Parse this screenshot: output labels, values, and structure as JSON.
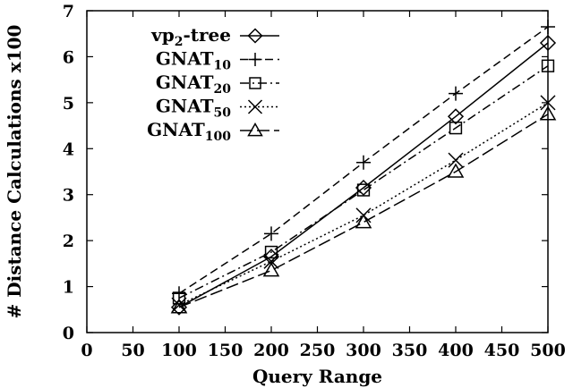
{
  "chart_data": {
    "type": "line",
    "xlabel": "Query Range",
    "ylabel": "# Distance Calculations x100",
    "xlim": [
      0,
      500
    ],
    "ylim": [
      0,
      7
    ],
    "xticks": [
      "0",
      "50",
      "100",
      "150",
      "200",
      "250",
      "300",
      "350",
      "400",
      "450",
      "500"
    ],
    "yticks": [
      "0",
      "1",
      "2",
      "3",
      "4",
      "5",
      "6",
      "7"
    ],
    "grid": false,
    "legend_position": "top-left",
    "x": [
      100,
      200,
      300,
      400,
      500
    ],
    "series": [
      {
        "name": "vp2-tree",
        "name_main": "vp",
        "name_sub": "2",
        "name_tail": "-tree",
        "marker": "diamond",
        "dash": "solid",
        "values": [
          0.55,
          1.65,
          3.15,
          4.7,
          6.3
        ]
      },
      {
        "name": "GNAT10",
        "name_main": "GNAT",
        "name_sub": "10",
        "name_tail": "",
        "marker": "plus",
        "dash": "dashed",
        "values": [
          0.85,
          2.15,
          3.7,
          5.2,
          6.65
        ]
      },
      {
        "name": "GNAT20",
        "name_main": "GNAT",
        "name_sub": "20",
        "name_tail": "",
        "marker": "square",
        "dash": "dashdot",
        "values": [
          0.75,
          1.75,
          3.1,
          4.45,
          5.8
        ]
      },
      {
        "name": "GNAT50",
        "name_main": "GNAT",
        "name_sub": "50",
        "name_tail": "",
        "marker": "cross",
        "dash": "dotted",
        "values": [
          0.6,
          1.55,
          2.55,
          3.75,
          5.0
        ]
      },
      {
        "name": "GNAT100",
        "name_main": "GNAT",
        "name_sub": "100",
        "name_tail": "",
        "marker": "triangle",
        "dash": "longdash",
        "values": [
          0.55,
          1.35,
          2.4,
          3.5,
          4.75
        ]
      }
    ]
  }
}
